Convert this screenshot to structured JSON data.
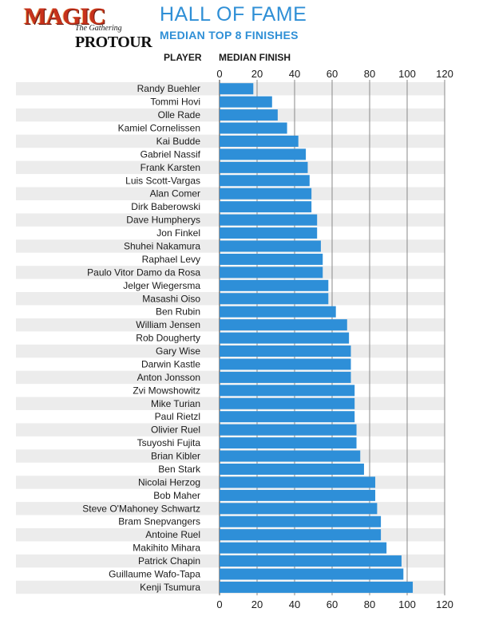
{
  "header": {
    "logo_magic": "MAGIC",
    "logo_gathering": "The Gathering",
    "logo_protour": "PROTOUR",
    "title": "HALL OF FAME",
    "subtitle": "MEDIAN TOP 8 FINISHES",
    "col_player": "PLAYER",
    "col_median": "MEDIAN FINISH"
  },
  "colors": {
    "bar": "#2e8fd8",
    "row_stripe": "#ececec",
    "grid": "#888888",
    "title": "#2f8fd6"
  },
  "chart_data": {
    "type": "bar",
    "orientation": "horizontal",
    "title": "HALL OF FAME",
    "subtitle": "MEDIAN TOP 8 FINISHES",
    "xlabel": "MEDIAN FINISH",
    "ylabel": "PLAYER",
    "xlim": [
      0,
      120
    ],
    "xticks": [
      0,
      20,
      40,
      60,
      80,
      100,
      120
    ],
    "grid": true,
    "categories": [
      "Randy Buehler",
      "Tommi Hovi",
      "Olle Rade",
      "Kamiel Cornelissen",
      "Kai Budde",
      "Gabriel Nassif",
      "Frank Karsten",
      "Luis Scott-Vargas",
      "Alan Comer",
      "Dirk Baberowski",
      "Dave Humpherys",
      "Jon Finkel",
      "Shuhei Nakamura",
      "Raphael Levy",
      "Paulo Vitor Damo da Rosa",
      "Jelger Wiegersma",
      "Masashi Oiso",
      "Ben Rubin",
      "William Jensen",
      "Rob Dougherty",
      "Gary Wise",
      "Darwin Kastle",
      "Anton Jonsson",
      "Zvi Mowshowitz",
      "Mike Turian",
      "Paul Rietzl",
      "Olivier Ruel",
      "Tsuyoshi Fujita",
      "Brian Kibler",
      "Ben Stark",
      "Nicolai Herzog",
      "Bob Maher",
      "Steve O'Mahoney Schwartz",
      "Bram Snepvangers",
      "Antoine Ruel",
      "Makihito Mihara",
      "Patrick Chapin",
      "Guillaume Wafo-Tapa",
      "Kenji Tsumura"
    ],
    "values": [
      18,
      28,
      31,
      36,
      42,
      46,
      47,
      48,
      49,
      49,
      52,
      52,
      54,
      55,
      55,
      58,
      58,
      62,
      68,
      69,
      70,
      70,
      70,
      72,
      72,
      72,
      73,
      73,
      75,
      77,
      83,
      83,
      84,
      86,
      86,
      89,
      97,
      98,
      103
    ]
  }
}
